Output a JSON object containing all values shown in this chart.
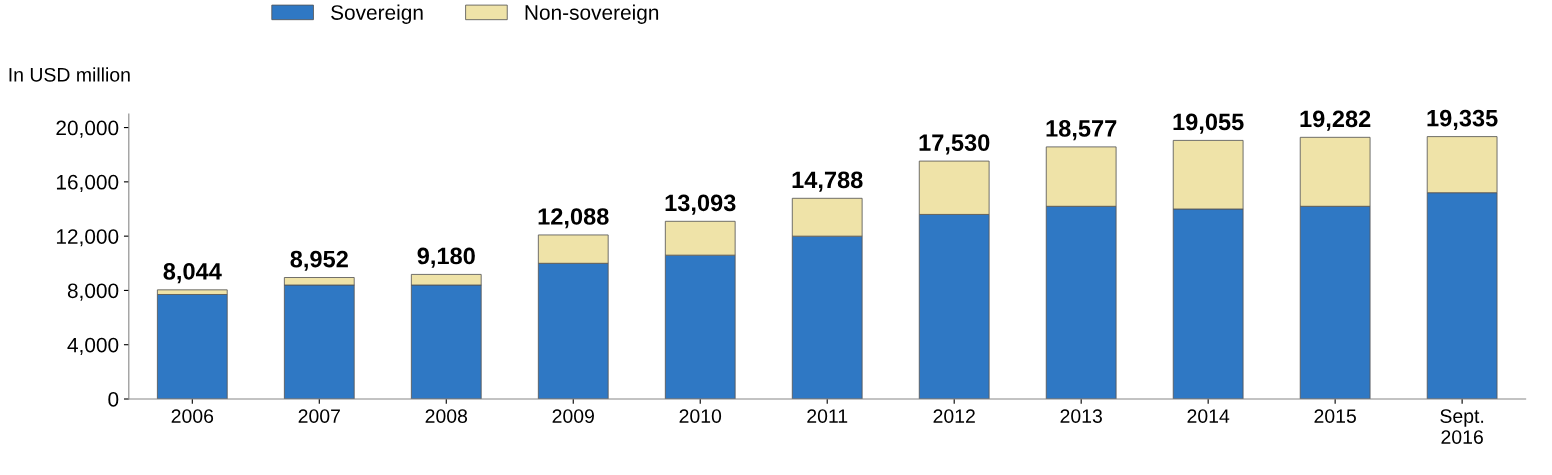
{
  "chart_data": {
    "type": "bar",
    "stacked": true,
    "ylabel": "In USD million",
    "categories": [
      "2006",
      "2007",
      "2008",
      "2009",
      "2010",
      "2011",
      "2012",
      "2013",
      "2014",
      "2015",
      "Sept.\n2016"
    ],
    "series": [
      {
        "name": "Sovereign",
        "color": "#2f78c4",
        "values": [
          7700,
          8400,
          8400,
          10000,
          10600,
          12000,
          13600,
          14200,
          14000,
          14200,
          15200
        ]
      },
      {
        "name": "Non-sovereign",
        "color": "#efe3a8",
        "values": [
          344,
          552,
          780,
          2088,
          2493,
          2788,
          3930,
          4377,
          5055,
          5082,
          4135
        ]
      }
    ],
    "totals": [
      "8,044",
      "8,952",
      "9,180",
      "12,088",
      "13,093",
      "14,788",
      "17,530",
      "18,577",
      "19,055",
      "19,282",
      "19,335"
    ],
    "ylim": [
      0,
      21000
    ],
    "yticks": [
      {
        "value": 0,
        "label": "0"
      },
      {
        "value": 4000,
        "label": "4,000"
      },
      {
        "value": 8000,
        "label": "8,000"
      },
      {
        "value": 12000,
        "label": "12,000"
      },
      {
        "value": 16000,
        "label": "16,000"
      },
      {
        "value": 20000,
        "label": "20,000"
      }
    ],
    "grid": false,
    "legend": "top"
  }
}
